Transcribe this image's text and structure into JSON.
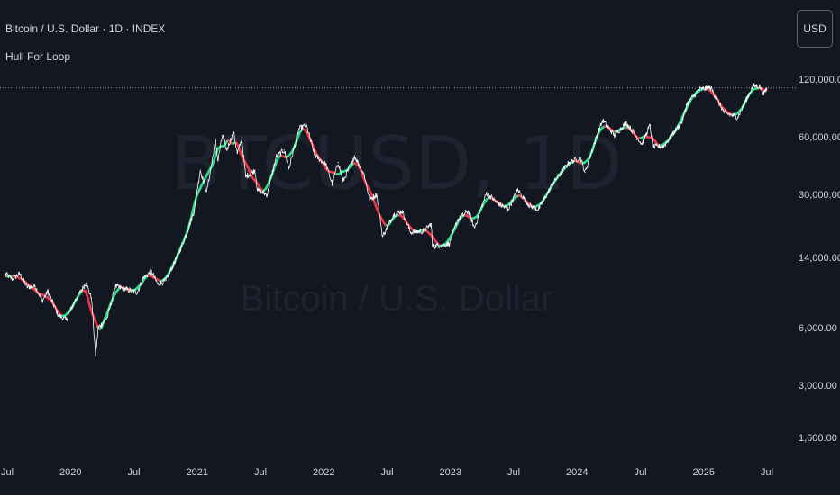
{
  "header": {
    "title": "Bitcoin / U.S. Dollar · 1D · INDEX",
    "indicator": "Hull For Loop"
  },
  "currency_button": "USD",
  "watermark": {
    "symbol": "BTCUSD, 1D",
    "description": "Bitcoin / U.S. Dollar"
  },
  "colors": {
    "background": "#131722",
    "price": "#ffffff",
    "hull_up": "#26e08a",
    "hull_down": "#f23645",
    "text": "#d1d4dc",
    "watermark": "#1f2330",
    "price_line": "#9598a1"
  },
  "chart_data": {
    "type": "line",
    "scale": "log",
    "grid": false,
    "xlabel": "",
    "ylabel": "",
    "x_ticks": [
      "Jul",
      "2020",
      "Jul",
      "2021",
      "Jul",
      "2022",
      "Jul",
      "2023",
      "Jul",
      "2024",
      "Jul",
      "2025",
      "Jul"
    ],
    "y_ticks": [
      "120,000.00",
      "60,000.00",
      "30,000.00",
      "14,000.00",
      "6,000.00",
      "3,000.00",
      "1,600.00"
    ],
    "y_tick_values": [
      120000,
      60000,
      30000,
      14000,
      6000,
      3000,
      1600
    ],
    "x_range": [
      "2019-07-01",
      "2025-07-01"
    ],
    "ylim": [
      1200,
      175000
    ],
    "last_price_line": 108000,
    "series": [
      {
        "points": [
          [
            "2019-06-26",
            11500
          ],
          [
            "2019-07-15",
            10800
          ],
          [
            "2019-08-06",
            11500
          ],
          [
            "2019-08-28",
            9800
          ],
          [
            "2019-09-20",
            9900
          ],
          [
            "2019-10-10",
            8300
          ],
          [
            "2019-10-26",
            9300
          ],
          [
            "2019-11-25",
            7000
          ],
          [
            "2019-12-18",
            6600
          ],
          [
            "2020-01-14",
            8400
          ],
          [
            "2020-02-13",
            10300
          ],
          [
            "2020-02-29",
            8600
          ],
          [
            "2020-03-12",
            4300
          ],
          [
            "2020-03-20",
            6000
          ],
          [
            "2020-04-15",
            6800
          ],
          [
            "2020-05-08",
            9900
          ],
          [
            "2020-06-10",
            9500
          ],
          [
            "2020-07-10",
            9200
          ],
          [
            "2020-07-28",
            11000
          ],
          [
            "2020-08-20",
            11800
          ],
          [
            "2020-09-08",
            10100
          ],
          [
            "2020-10-01",
            10600
          ],
          [
            "2020-10-25",
            13100
          ],
          [
            "2020-11-15",
            16000
          ],
          [
            "2020-12-01",
            19000
          ],
          [
            "2020-12-20",
            24000
          ],
          [
            "2021-01-08",
            40000
          ],
          [
            "2021-01-27",
            31000
          ],
          [
            "2021-02-21",
            57000
          ],
          [
            "2021-02-28",
            45000
          ],
          [
            "2021-03-13",
            61000
          ],
          [
            "2021-03-25",
            51000
          ],
          [
            "2021-04-14",
            63500
          ],
          [
            "2021-04-25",
            49000
          ],
          [
            "2021-05-08",
            58000
          ],
          [
            "2021-05-19",
            37000
          ],
          [
            "2021-06-15",
            40000
          ],
          [
            "2021-06-22",
            31500
          ],
          [
            "2021-07-20",
            29800
          ],
          [
            "2021-08-15",
            47000
          ],
          [
            "2021-09-07",
            51000
          ],
          [
            "2021-09-21",
            41000
          ],
          [
            "2021-10-20",
            66000
          ],
          [
            "2021-11-10",
            69000
          ],
          [
            "2021-12-04",
            48000
          ],
          [
            "2022-01-05",
            43000
          ],
          [
            "2022-01-24",
            34000
          ],
          [
            "2022-02-10",
            44000
          ],
          [
            "2022-02-24",
            35000
          ],
          [
            "2022-03-29",
            47500
          ],
          [
            "2022-04-26",
            38000
          ],
          [
            "2022-05-12",
            28000
          ],
          [
            "2022-06-01",
            30000
          ],
          [
            "2022-06-18",
            18000
          ],
          [
            "2022-07-20",
            23500
          ],
          [
            "2022-08-14",
            24500
          ],
          [
            "2022-09-06",
            19000
          ],
          [
            "2022-10-15",
            19200
          ],
          [
            "2022-11-05",
            21000
          ],
          [
            "2022-11-09",
            16000
          ],
          [
            "2022-12-28",
            16500
          ],
          [
            "2023-01-20",
            22000
          ],
          [
            "2023-02-20",
            24500
          ],
          [
            "2023-03-10",
            20000
          ],
          [
            "2023-04-14",
            30500
          ],
          [
            "2023-05-15",
            27000
          ],
          [
            "2023-06-15",
            25000
          ],
          [
            "2023-07-13",
            31500
          ],
          [
            "2023-08-17",
            26000
          ],
          [
            "2023-09-11",
            25000
          ],
          [
            "2023-10-24",
            34500
          ],
          [
            "2023-12-08",
            44000
          ],
          [
            "2024-01-10",
            46500
          ],
          [
            "2024-01-23",
            39000
          ],
          [
            "2024-02-28",
            62000
          ],
          [
            "2024-03-14",
            73000
          ],
          [
            "2024-04-17",
            61000
          ],
          [
            "2024-05-21",
            71000
          ],
          [
            "2024-07-05",
            55000
          ],
          [
            "2024-07-29",
            69000
          ],
          [
            "2024-08-05",
            53000
          ],
          [
            "2024-09-06",
            53500
          ],
          [
            "2024-10-29",
            72000
          ],
          [
            "2024-11-12",
            89000
          ],
          [
            "2024-12-17",
            106000
          ],
          [
            "2025-01-20",
            108000
          ],
          [
            "2025-02-28",
            80000
          ],
          [
            "2025-04-08",
            76000
          ],
          [
            "2025-05-22",
            111000
          ],
          [
            "2025-06-10",
            110000
          ],
          [
            "2025-06-22",
            100000
          ],
          [
            "2025-06-30",
            107500
          ]
        ]
      }
    ]
  }
}
